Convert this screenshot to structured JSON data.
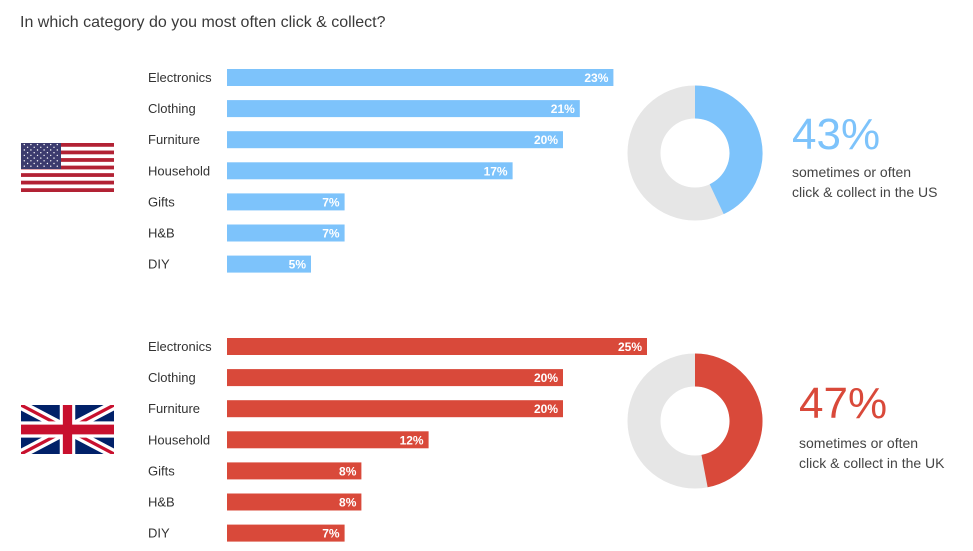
{
  "title": "In which category do you most often click & collect?",
  "colors": {
    "us": "#7dc3fb",
    "uk": "#d9493a",
    "donut_rest": "#e6e6e6"
  },
  "flags": {
    "us": "us-flag-icon",
    "uk": "uk-flag-icon"
  },
  "chart_data": [
    {
      "type": "bar",
      "orientation": "horizontal",
      "country": "US",
      "categories": [
        "Electronics",
        "Clothing",
        "Furniture",
        "Household",
        "Gifts",
        "H&B",
        "DIY"
      ],
      "values": [
        23,
        21,
        20,
        17,
        7,
        7,
        5
      ],
      "labels": [
        "23%",
        "21%",
        "20%",
        "17%",
        "7%",
        "7%",
        "5%"
      ],
      "color": "#7dc3fb"
    },
    {
      "type": "pie",
      "variant": "donut",
      "country": "US",
      "value": 43,
      "headline": "43%",
      "caption_line1": "sometimes or often",
      "caption_line2": "click & collect in the US",
      "color": "#7dc3fb"
    },
    {
      "type": "bar",
      "orientation": "horizontal",
      "country": "UK",
      "categories": [
        "Electronics",
        "Clothing",
        "Furniture",
        "Household",
        "Gifts",
        "H&B",
        "DIY"
      ],
      "values": [
        25,
        20,
        20,
        12,
        8,
        8,
        7
      ],
      "labels": [
        "25%",
        "20%",
        "20%",
        "12%",
        "8%",
        "8%",
        "7%"
      ],
      "color": "#d9493a"
    },
    {
      "type": "pie",
      "variant": "donut",
      "country": "UK",
      "value": 47,
      "headline": "47%",
      "caption_line1": "sometimes or often",
      "caption_line2": "click & collect in the UK",
      "color": "#d9493a"
    }
  ]
}
